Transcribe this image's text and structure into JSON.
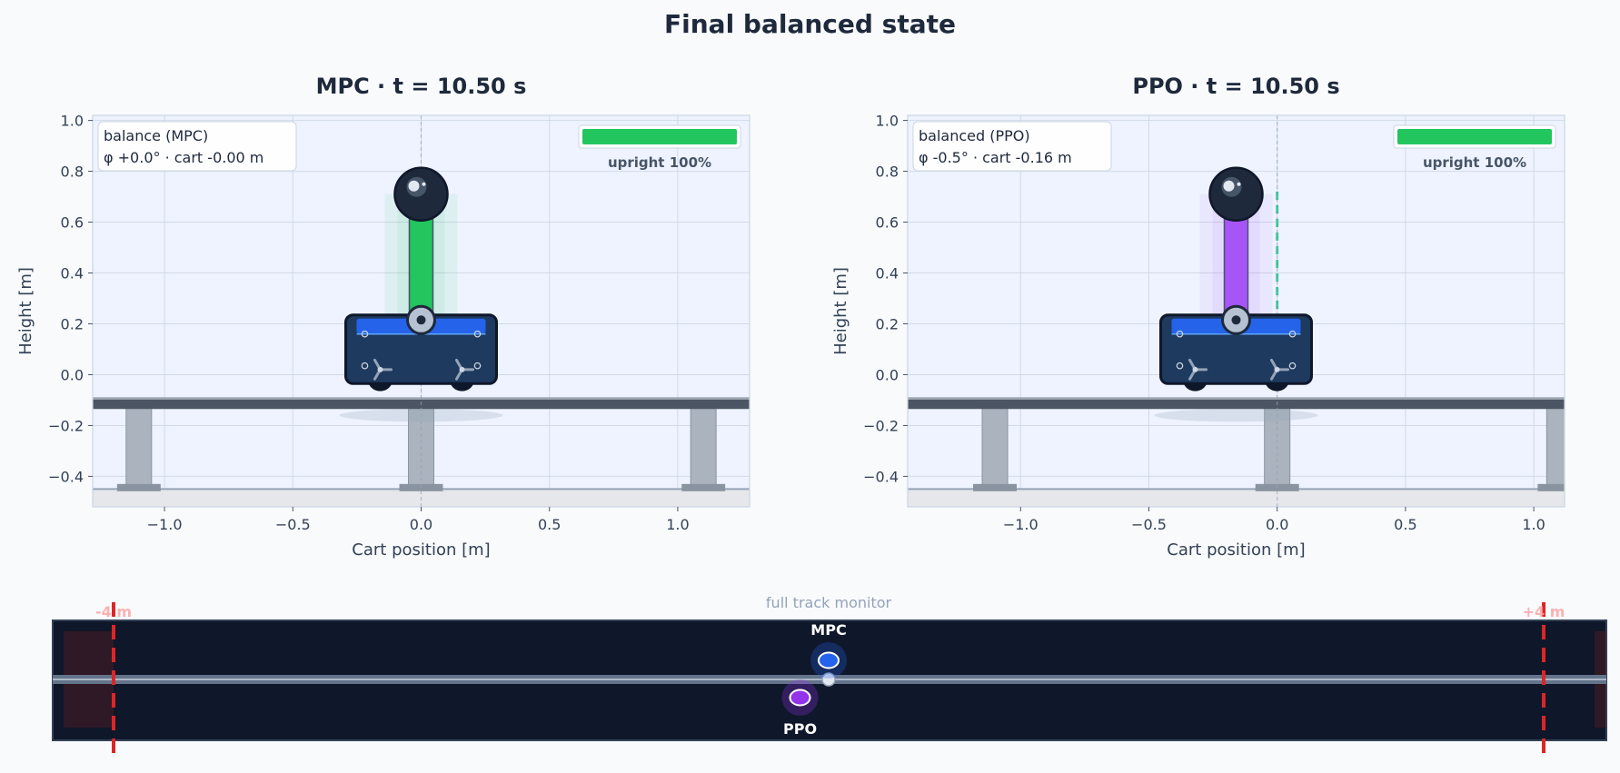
{
  "suptitle": "Final balanced state",
  "colors": {
    "background": "#f8fafc",
    "axes_bg": "#eef3ff",
    "title": "#1e293b",
    "cart_body": "#1e3a5f",
    "cart_accent": "#2563eb",
    "mpc_pole": "#22c55e",
    "ppo_pole": "#a855f7",
    "upright_bar": "#22c55e",
    "monitor_bg": "#0f172a",
    "limit_line": "#dc2626",
    "reference_line": "#10b981"
  },
  "chart_data": [
    {
      "type": "scatter",
      "panel": "left",
      "title": "MPC  ·  t = 10.50 s",
      "xlabel": "Cart position [m]",
      "ylabel": "Height [m]",
      "xlim": [
        -1.28,
        1.28
      ],
      "ylim": [
        -0.52,
        1.02
      ],
      "xticks": [
        -1.0,
        -0.5,
        0.0,
        0.5,
        1.0
      ],
      "xtick_labels": [
        "−1.0",
        "−0.5",
        "0.0",
        "0.5",
        "1.0"
      ],
      "yticks": [
        1.0,
        0.8,
        0.6,
        0.4,
        0.2,
        0.0,
        -0.2,
        -0.4
      ],
      "ytick_labels": [
        "1.0",
        "0.8",
        "0.6",
        "0.4",
        "0.2",
        "0.0",
        "−0.2",
        "−0.4"
      ],
      "grid": true,
      "cart_x": 0.0,
      "pole_angle_deg": 0.0,
      "pole_color": "#22c55e",
      "show_reference_line": false,
      "info_lines": [
        "balance  (MPC)",
        "φ +0.0°  ·  cart -0.00 m"
      ],
      "upright_label": "upright  100%",
      "upright_fraction": 1.0
    },
    {
      "type": "scatter",
      "panel": "right",
      "title": "PPO  ·  t = 10.50 s",
      "xlabel": "Cart position [m]",
      "ylabel": "Height [m]",
      "xlim": [
        -1.44,
        1.12
      ],
      "ylim": [
        -0.52,
        1.02
      ],
      "xticks": [
        -1.0,
        -0.5,
        0.0,
        0.5,
        1.0
      ],
      "xtick_labels": [
        "−1.0",
        "−0.5",
        "0.0",
        "0.5",
        "1.0"
      ],
      "yticks": [
        1.0,
        0.8,
        0.6,
        0.4,
        0.2,
        0.0,
        -0.2,
        -0.4
      ],
      "ytick_labels": [
        "1.0",
        "0.8",
        "0.6",
        "0.4",
        "0.2",
        "0.0",
        "−0.2",
        "−0.4"
      ],
      "grid": true,
      "cart_x": -0.16,
      "pole_angle_deg": -0.5,
      "pole_color": "#a855f7",
      "show_reference_line": true,
      "info_lines": [
        "balanced (PPO)",
        "φ -0.5°  ·  cart -0.16 m"
      ],
      "upright_label": "upright  100%",
      "upright_fraction": 1.0
    }
  ],
  "monitor": {
    "title": "full track monitor",
    "limit_labels": [
      "-4 m",
      "+4 m"
    ],
    "track_limits": [
      -4,
      4
    ],
    "agents": [
      {
        "name": "MPC",
        "x": 0.0,
        "color": "#2563eb"
      },
      {
        "name": "PPO",
        "x": -0.16,
        "color": "#9333ea"
      }
    ]
  }
}
